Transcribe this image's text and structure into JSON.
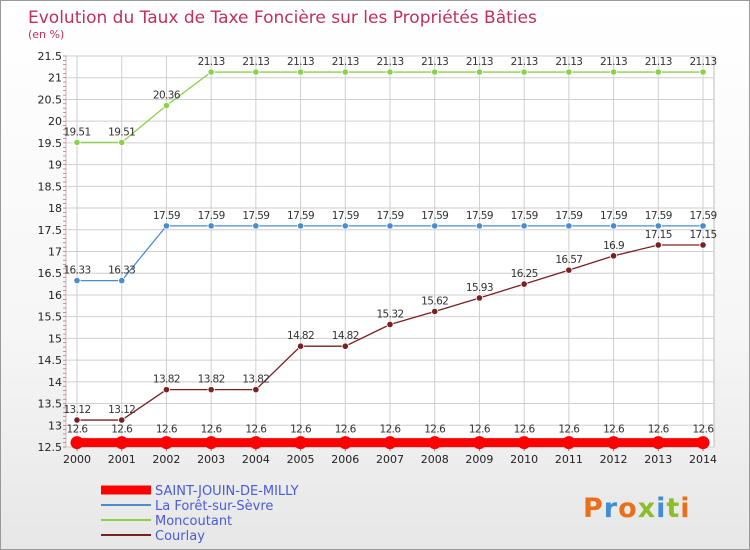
{
  "chart_data": {
    "type": "line",
    "title": "Evolution du Taux de Taxe Foncière sur les Propriétés Bâties",
    "subtitle": "(en %)",
    "xlabel": "",
    "ylabel": "",
    "x": [
      "2000",
      "2001",
      "2002",
      "2003",
      "2004",
      "2005",
      "2006",
      "2007",
      "2008",
      "2009",
      "2010",
      "2011",
      "2012",
      "2013",
      "2014"
    ],
    "ylim": [
      12.5,
      21.5
    ],
    "yticks": [
      "12.5",
      "13",
      "13.5",
      "14",
      "14.5",
      "15",
      "15.5",
      "16",
      "16.5",
      "17",
      "17.5",
      "18",
      "18.5",
      "19",
      "19.5",
      "20",
      "20.5",
      "21",
      "21.5"
    ],
    "grid": true,
    "legend_position": "bottom-left",
    "series": [
      {
        "name": "SAINT-JOUIN-DE-MILLY",
        "color": "#ff0000",
        "values": [
          12.6,
          12.6,
          12.6,
          12.6,
          12.6,
          12.6,
          12.6,
          12.6,
          12.6,
          12.6,
          12.6,
          12.6,
          12.6,
          12.6,
          12.6
        ],
        "labels": [
          "12.6",
          "12.6",
          "12.6",
          "12.6",
          "12.6",
          "12.6",
          "12.6",
          "12.6",
          "12.6",
          "12.6",
          "12.6",
          "12.6",
          "12.6",
          "12.6",
          "12.6"
        ]
      },
      {
        "name": "La Forêt-sur-Sèvre",
        "color": "#4a8cd0",
        "values": [
          16.33,
          16.33,
          17.59,
          17.59,
          17.59,
          17.59,
          17.59,
          17.59,
          17.59,
          17.59,
          17.59,
          17.59,
          17.59,
          17.59,
          17.59
        ],
        "labels": [
          "16.33",
          "16.33",
          "17.59",
          "17.59",
          "17.59",
          "17.59",
          "17.59",
          "17.59",
          "17.59",
          "17.59",
          "17.59",
          "17.59",
          "17.59",
          "17.59",
          "17.59"
        ]
      },
      {
        "name": "Moncoutant",
        "color": "#8bd24a",
        "values": [
          19.51,
          19.51,
          20.36,
          21.13,
          21.13,
          21.13,
          21.13,
          21.13,
          21.13,
          21.13,
          21.13,
          21.13,
          21.13,
          21.13,
          21.13
        ],
        "labels": [
          "19.51",
          "19.51",
          "20.36",
          "21.13",
          "21.13",
          "21.13",
          "21.13",
          "21.13",
          "21.13",
          "21.13",
          "21.13",
          "21.13",
          "21.13",
          "21.13",
          "21.13"
        ]
      },
      {
        "name": "Courlay",
        "color": "#7a2020",
        "values": [
          13.12,
          13.12,
          13.82,
          13.82,
          13.82,
          14.82,
          14.82,
          15.32,
          15.62,
          15.93,
          16.25,
          16.57,
          16.9,
          17.15,
          17.15
        ],
        "labels": [
          "13.12",
          "13.12",
          "13.82",
          "13.82",
          "13.82",
          "14.82",
          "14.82",
          "15.32",
          "15.62",
          "15.93",
          "16.25",
          "16.57",
          "16.9",
          "17.15",
          "17.15"
        ]
      }
    ]
  },
  "logo": {
    "text": "Proxiti",
    "letter_colors": [
      "#e8701a",
      "#3f8fd8",
      "#e8701a",
      "#8bbf2a",
      "#3f8fd8",
      "#8bbf2a",
      "#e8701a"
    ]
  }
}
